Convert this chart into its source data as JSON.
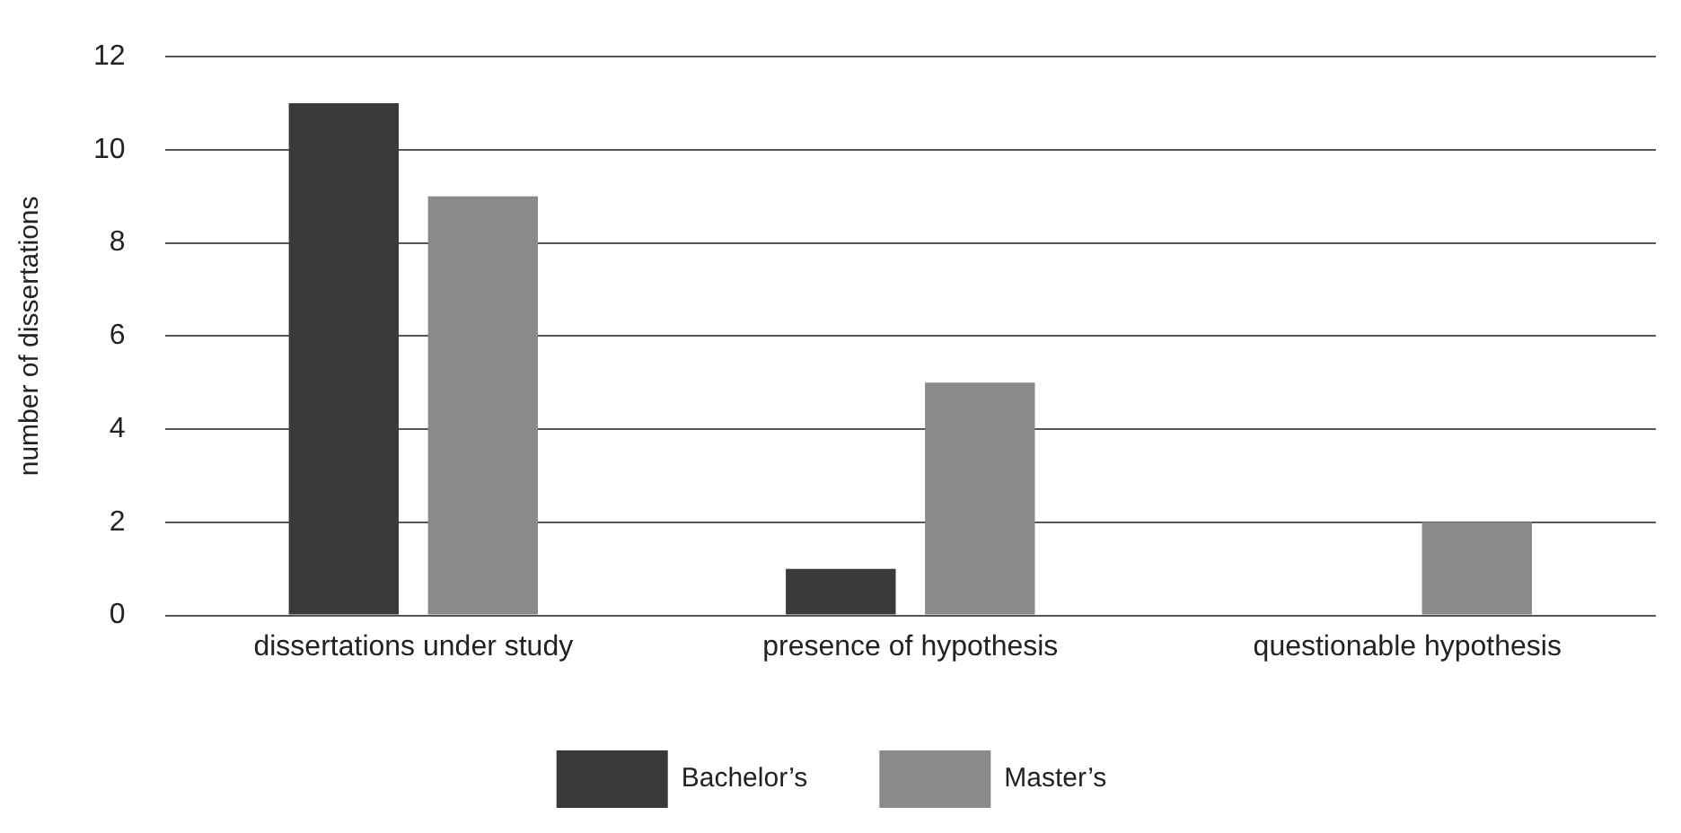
{
  "chart_data": {
    "type": "bar",
    "ylabel": "number of dissertations",
    "categories": [
      "dissertations under study",
      "presence of hypothesis",
      "questionable hypothesis"
    ],
    "series": [
      {
        "name": "Bachelor’s",
        "color": "#3a3a3a",
        "values": [
          11,
          1,
          0
        ]
      },
      {
        "name": "Master’s",
        "color": "#8a8a8a",
        "values": [
          9,
          5,
          2
        ]
      }
    ],
    "ylim": [
      0,
      12
    ],
    "yticks": [
      0,
      2,
      4,
      6,
      8,
      10,
      12
    ],
    "grid": "y",
    "legend": "bottom"
  }
}
